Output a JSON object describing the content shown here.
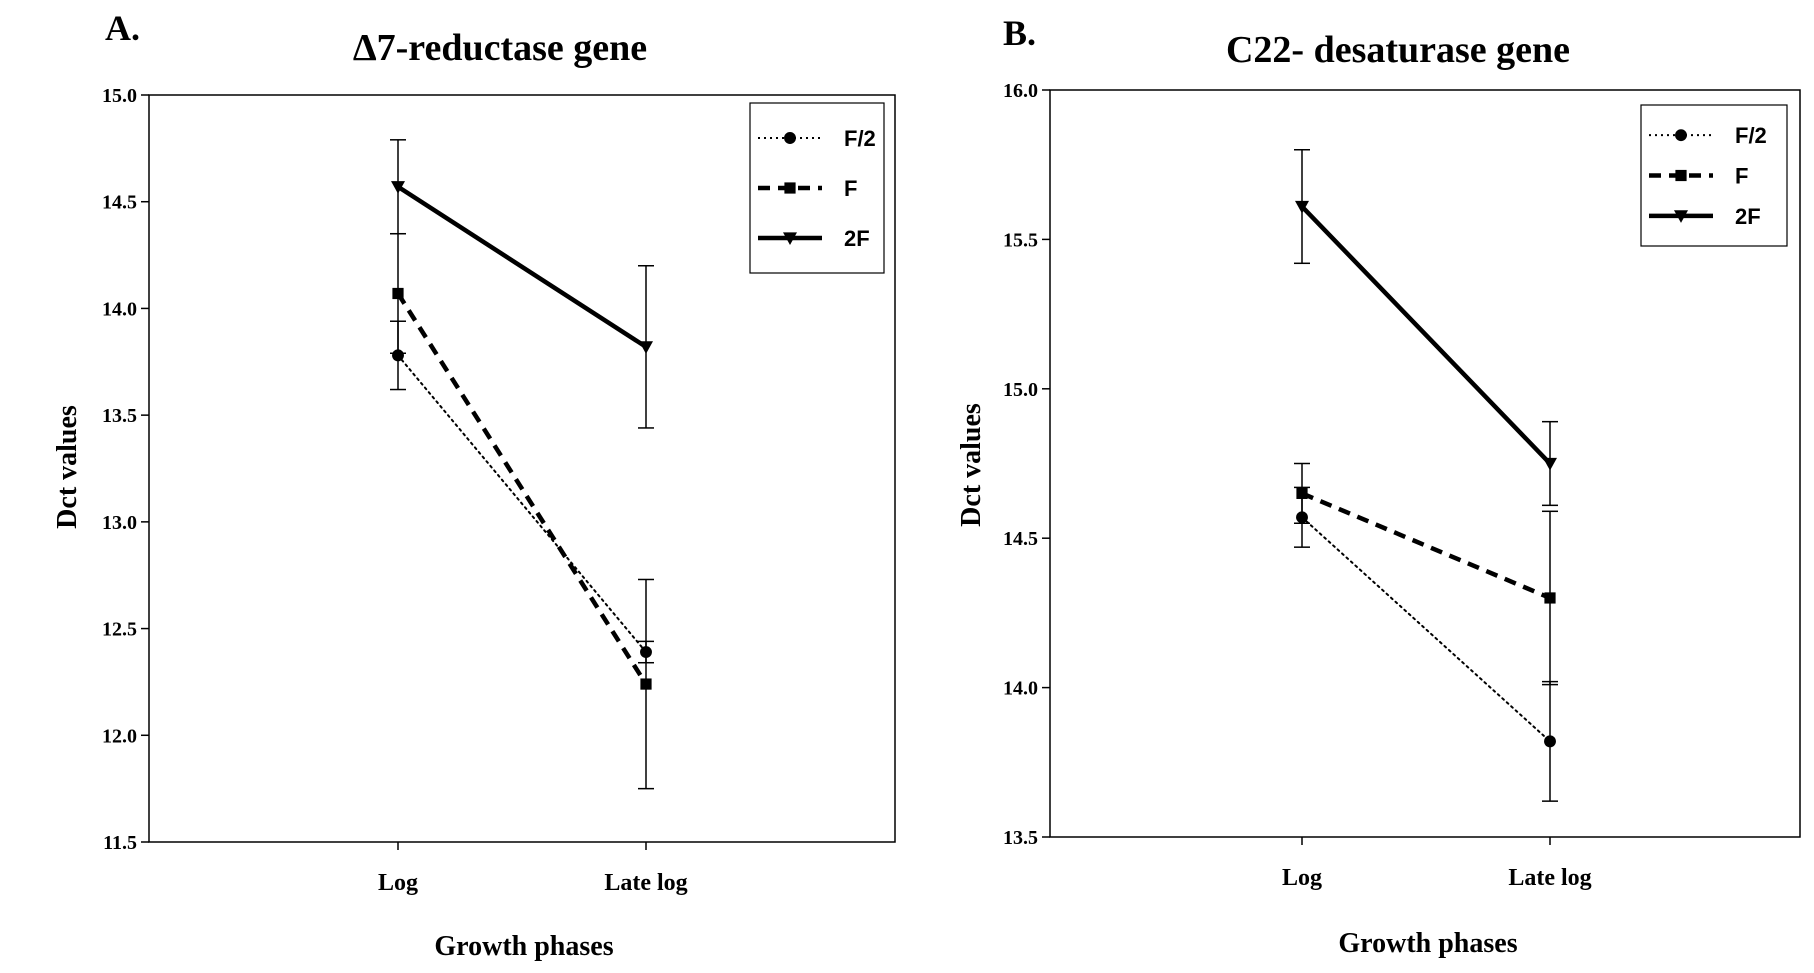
{
  "chart_data": [
    {
      "type": "line",
      "panel": "A.",
      "title": "Δ7-reductase gene",
      "xlabel": "Growth phases",
      "ylabel": "Dct values",
      "categories": [
        "Log",
        "Late log"
      ],
      "ylim": [
        11.5,
        15.0
      ],
      "yticks": [
        "11.5",
        "12.0",
        "12.5",
        "13.0",
        "13.5",
        "14.0",
        "14.5",
        "15.0"
      ],
      "legend_position": "top-right",
      "grid": false,
      "series": [
        {
          "name": "F/2",
          "marker": "circle",
          "line": "dotted",
          "values": [
            13.78,
            12.39
          ],
          "errors": [
            0.16,
            0.05
          ]
        },
        {
          "name": "F",
          "marker": "square",
          "line": "dashed",
          "values": [
            14.07,
            12.24
          ],
          "errors": [
            0.28,
            0.49
          ]
        },
        {
          "name": "2F",
          "marker": "triangle-down",
          "line": "solid",
          "values": [
            14.57,
            13.82
          ],
          "errors": [
            0.22,
            0.38
          ]
        }
      ]
    },
    {
      "type": "line",
      "panel": "B.",
      "title": "C22- desaturase gene",
      "xlabel": "Growth phases",
      "ylabel": "Dct values",
      "categories": [
        "Log",
        "Late log"
      ],
      "ylim": [
        13.5,
        16.0
      ],
      "yticks": [
        "13.5",
        "14.0",
        "14.5",
        "15.0",
        "15.5",
        "16.0"
      ],
      "legend_position": "top-right",
      "grid": false,
      "series": [
        {
          "name": "F/2",
          "marker": "circle",
          "line": "dotted",
          "values": [
            14.57,
            13.82
          ],
          "errors": [
            0.1,
            0.2
          ]
        },
        {
          "name": "F",
          "marker": "square",
          "line": "dashed",
          "values": [
            14.65,
            14.3
          ],
          "errors": [
            0.1,
            0.29
          ]
        },
        {
          "name": "2F",
          "marker": "triangle-down",
          "line": "solid",
          "values": [
            15.61,
            14.75
          ],
          "errors": [
            0.19,
            0.14
          ]
        }
      ]
    }
  ]
}
